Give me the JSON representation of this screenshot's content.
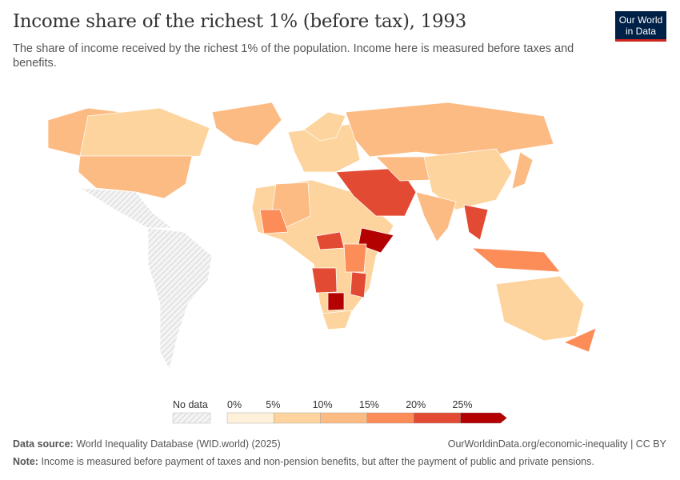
{
  "header": {
    "title": "Income share of the richest 1% (before tax), 1993",
    "subtitle": "The share of income received by the richest 1% of the population. Income here is measured before taxes and benefits.",
    "logo": "Our World in Data"
  },
  "legend": {
    "no_data_label": "No data",
    "ticks": [
      "0%",
      "5%",
      "10%",
      "15%",
      "20%",
      "25%"
    ],
    "colors": [
      "#fef0d9",
      "#fdd49e",
      "#fdbb84",
      "#fc8d59",
      "#e34a33",
      "#b30000"
    ],
    "no_data_color": "#e0e0e0"
  },
  "footer": {
    "source_label": "Data source:",
    "source": "World Inequality Database (WID.world) (2025)",
    "url": "OurWorldinData.org/economic-inequality | CC BY",
    "note_label": "Note:",
    "note": "Income is measured before payment of taxes and non-pension benefits, but after the payment of public and private pensions."
  }
}
